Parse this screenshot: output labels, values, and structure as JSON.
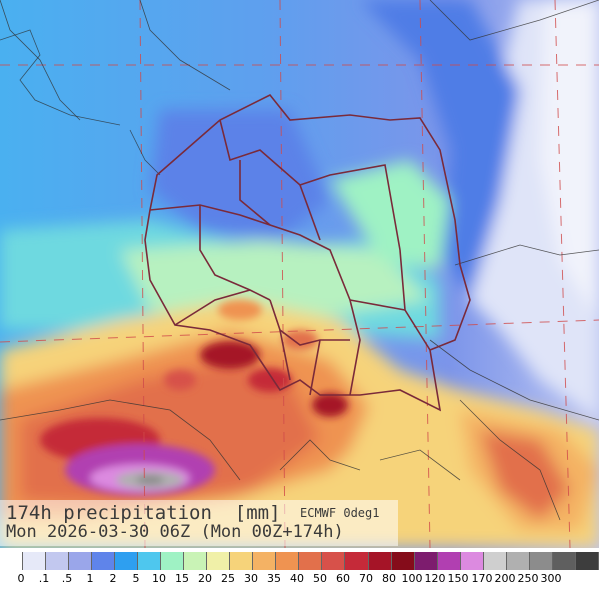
{
  "title": "174h precipitation  [mm]",
  "source": "ECMWF 0deg1",
  "valid_time": "Mon 2026-03-30 06Z (Mon 00Z+174h)",
  "legend": {
    "colors": [
      "#ffffff",
      "#e6e9f8",
      "#c2c8ef",
      "#9aa6ea",
      "#5f84ea",
      "#2e9ff0",
      "#4ec7ee",
      "#9ff2c4",
      "#c9f3b6",
      "#f0f0a8",
      "#f6d37a",
      "#f4b264",
      "#ef9351",
      "#e2704b",
      "#d7514a",
      "#c52a39",
      "#a51427",
      "#850c1a",
      "#7d1c6e",
      "#b13fb1",
      "#dc8ae0",
      "#cfcfcf",
      "#b0b0b0",
      "#8c8c8c",
      "#5f5f5f",
      "#3d3d3d"
    ],
    "labels": [
      "0",
      ".1",
      ".5",
      "1",
      "2",
      "5",
      "10",
      "15",
      "20",
      "25",
      "30",
      "35",
      "40",
      "50",
      "60",
      "70",
      "80",
      "100",
      "120",
      "150",
      "170",
      "200",
      "250",
      "300"
    ]
  }
}
